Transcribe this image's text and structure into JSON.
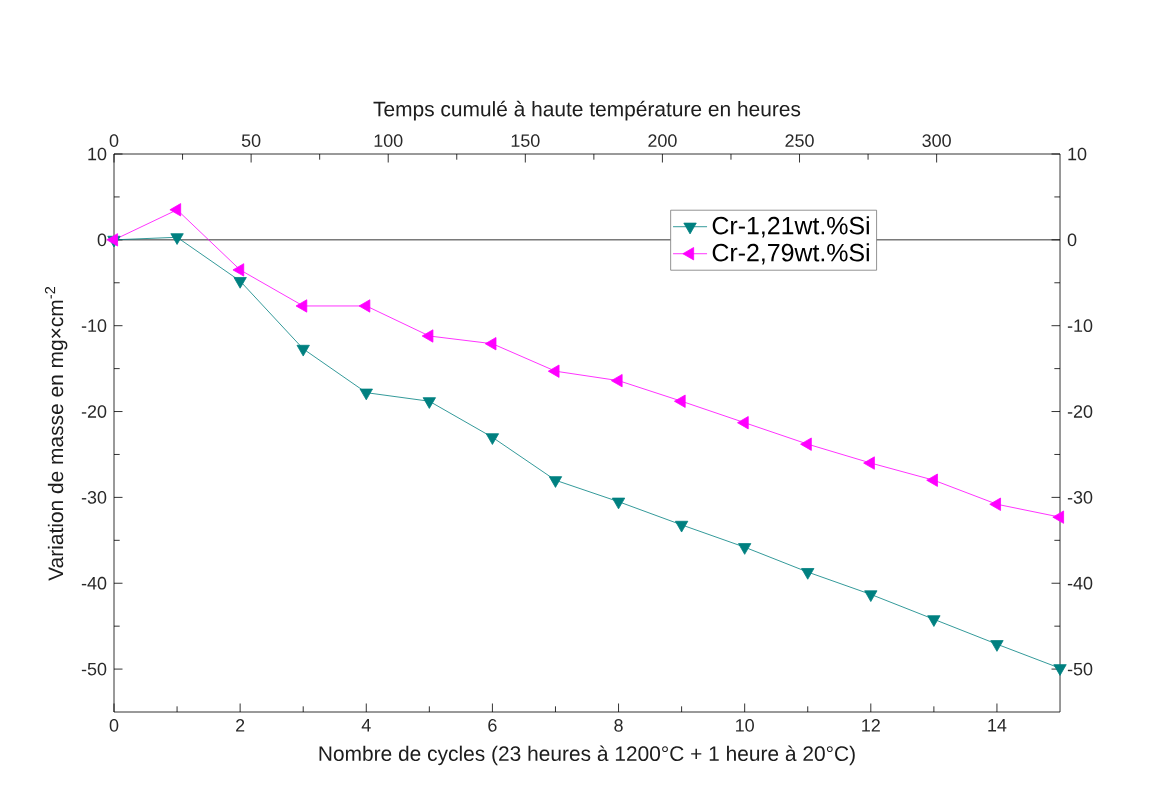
{
  "chart_data": {
    "type": "line",
    "xlabel": "Nombre de cycles (23 heures à 1200°C + 1 heure à 20°C)",
    "ylabel": "Variation de masse en mg×cm$^{-2}$",
    "x2label": "Temps cumulé à haute température en heures",
    "x": [
      0,
      1,
      2,
      3,
      4,
      5,
      6,
      7,
      8,
      9,
      10,
      11,
      12,
      13,
      14,
      15
    ],
    "series": [
      {
        "name": "Cr-1,21wt.%Si",
        "color": "#008080",
        "values": [
          0,
          0.3,
          -4.8,
          -12.7,
          -17.8,
          -18.8,
          -23,
          -28,
          -30.5,
          -33.2,
          -35.8,
          -38.7,
          -41.3,
          -44.2,
          -47.1,
          -49.9
        ]
      },
      {
        "name": "Cr-2,79wt.%Si",
        "color": "#ff00ff",
        "values": [
          0,
          3.5,
          -3.5,
          -7.7,
          -7.7,
          -11.2,
          -12.1,
          -15.3,
          -16.4,
          -18.8,
          -21.3,
          -23.8,
          -26,
          -28,
          -30.8,
          -32.3
        ]
      }
    ],
    "xlim": [
      0,
      15
    ],
    "xticks": [
      0,
      2,
      4,
      6,
      8,
      10,
      12,
      14
    ],
    "x2lim": [
      0,
      345
    ],
    "x2ticks": [
      0,
      50,
      100,
      150,
      200,
      250,
      300
    ],
    "ylim": [
      -55,
      10
    ],
    "yticks": [
      -50,
      -40,
      -30,
      -20,
      -10,
      0,
      10
    ],
    "y2lim": [
      -55,
      10
    ],
    "y2ticks": [
      -50,
      -40,
      -30,
      -20,
      -10,
      0,
      10
    ],
    "ref_lines": [
      {
        "axis": "y",
        "value": 0,
        "color": "#000000"
      }
    ],
    "legend": "top right",
    "marker": "triangle",
    "line_style": "solid",
    "grid": false
  }
}
